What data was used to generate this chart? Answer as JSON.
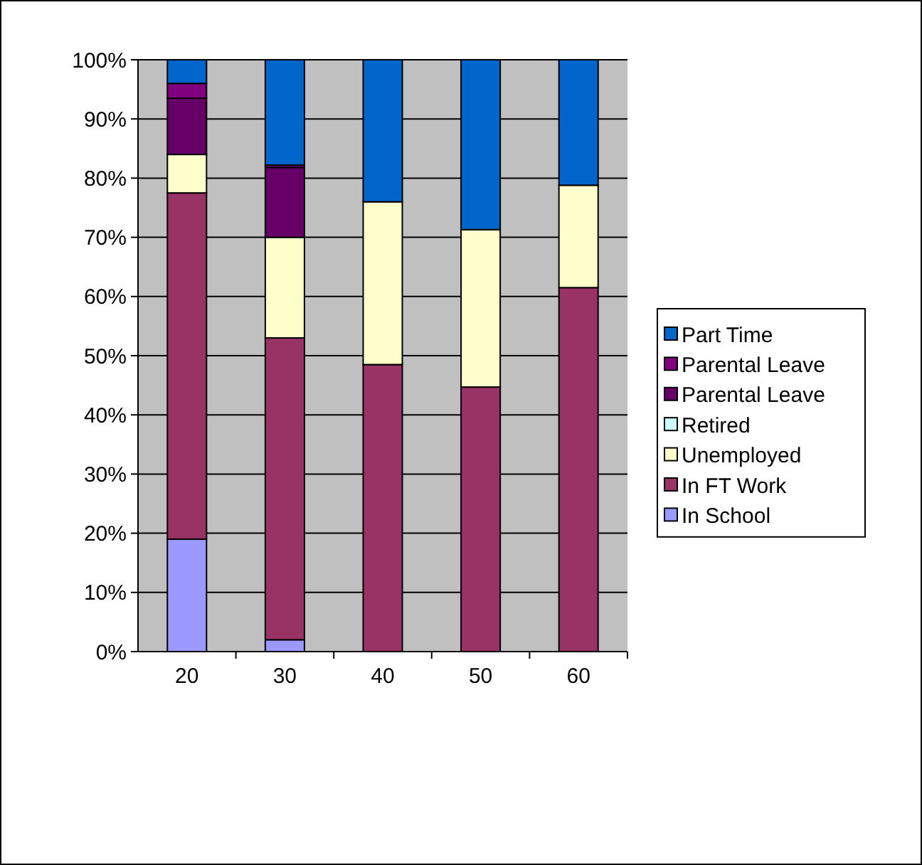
{
  "chart_data": {
    "type": "bar",
    "stacked": true,
    "categories": [
      "20",
      "30",
      "40",
      "50",
      "60"
    ],
    "series": [
      {
        "name": "In School",
        "color": "#9999ff",
        "values": [
          19,
          2,
          0,
          0,
          0
        ]
      },
      {
        "name": "In FT Work",
        "color": "#993366",
        "values": [
          58.5,
          51,
          48.5,
          44.7,
          61.5
        ]
      },
      {
        "name": "Unemployed",
        "color": "#ffffcc",
        "values": [
          6.5,
          17,
          27.5,
          26.6,
          17.3
        ]
      },
      {
        "name": "Retired",
        "color": "#ccffff",
        "values": [
          0,
          0,
          0,
          0,
          0
        ]
      },
      {
        "name": "Parental Leave",
        "color": "#660066",
        "values": [
          9.5,
          11.8,
          0,
          0,
          0
        ]
      },
      {
        "name": "Parental Leave",
        "color": "#800080",
        "values": [
          2.5,
          0.4,
          0,
          0,
          0
        ]
      },
      {
        "name": "Part Time",
        "color": "#0066cc",
        "values": [
          4,
          17.8,
          24,
          28.7,
          21.2
        ]
      }
    ],
    "ylim": [
      0,
      100
    ],
    "yticks": [
      {
        "value": 0,
        "label": "0%"
      },
      {
        "value": 10,
        "label": "10%"
      },
      {
        "value": 20,
        "label": "20%"
      },
      {
        "value": 30,
        "label": "30%"
      },
      {
        "value": 40,
        "label": "40%"
      },
      {
        "value": 50,
        "label": "50%"
      },
      {
        "value": 60,
        "label": "60%"
      },
      {
        "value": 70,
        "label": "70%"
      },
      {
        "value": 80,
        "label": "80%"
      },
      {
        "value": 90,
        "label": "90%"
      },
      {
        "value": 100,
        "label": "100%"
      }
    ],
    "grid": "y",
    "legend": "right"
  }
}
